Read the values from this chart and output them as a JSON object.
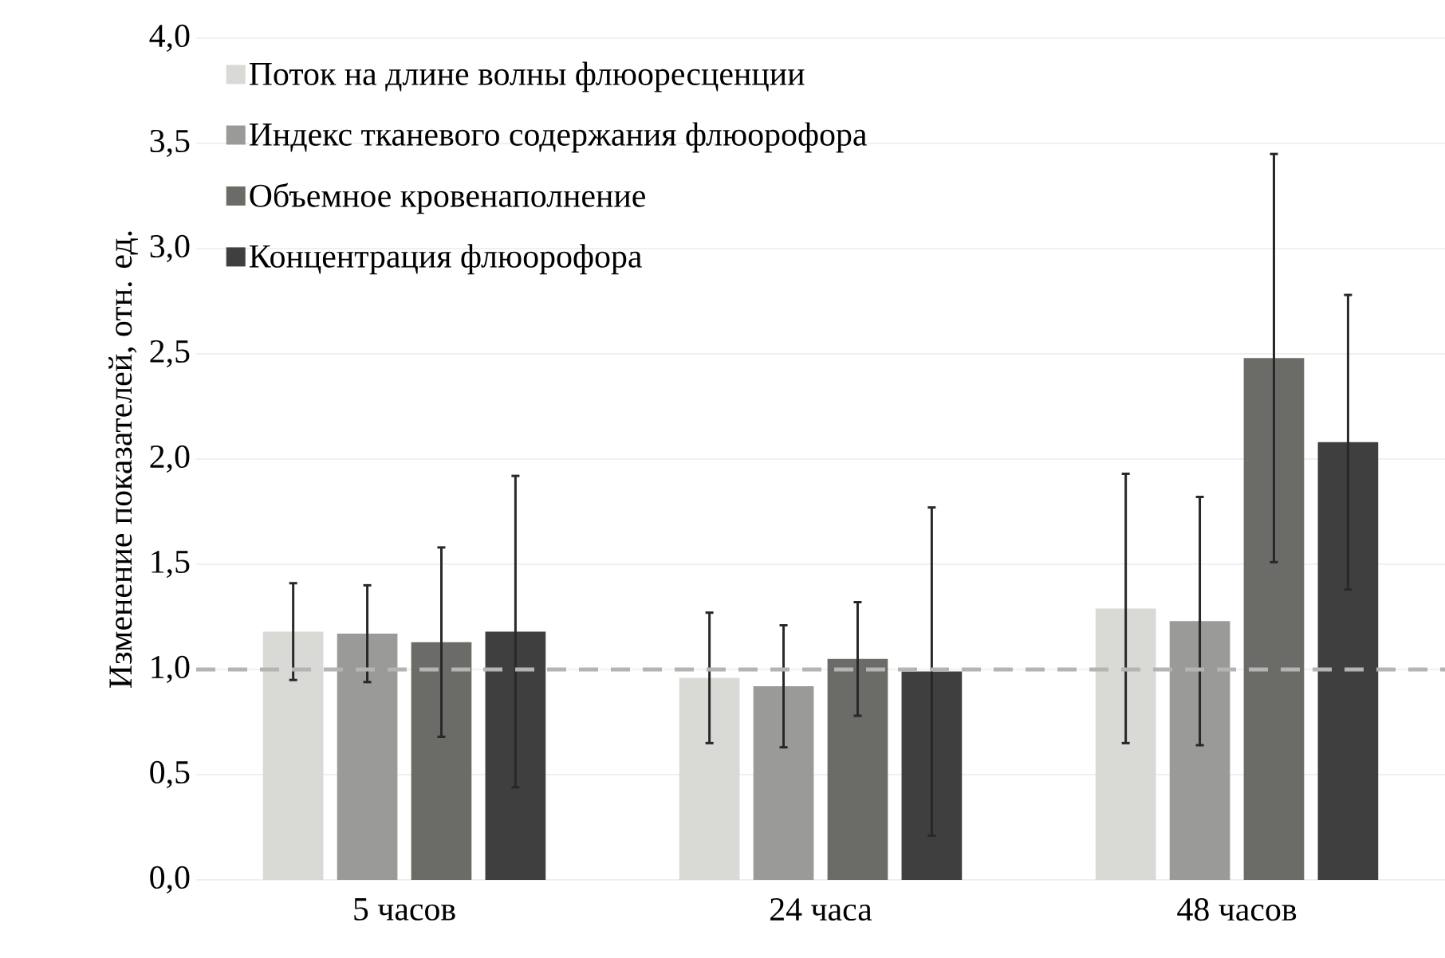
{
  "chart_data": {
    "type": "bar",
    "ylabel": "Изменение показателей, отн. ед.",
    "categories": [
      "5 часов",
      "24 часа",
      "48 часов"
    ],
    "series": [
      {
        "name": "Поток на длине волны флюоресценции",
        "color": "#d9d9d6",
        "values": [
          1.18,
          0.96,
          1.29
        ],
        "errors": [
          0.23,
          0.31,
          0.64
        ]
      },
      {
        "name": "Индекс тканевого содержания флюорофора",
        "color": "#9a9a98",
        "values": [
          1.17,
          0.92,
          1.23
        ],
        "errors": [
          0.23,
          0.29,
          0.59
        ]
      },
      {
        "name": "Объемное кровенаполнение",
        "color": "#6b6b67",
        "values": [
          1.13,
          1.05,
          2.48
        ],
        "errors": [
          0.45,
          0.27,
          0.97
        ]
      },
      {
        "name": "Концентрация флюорофора",
        "color": "#3f3f3f",
        "values": [
          1.18,
          0.99,
          2.08
        ],
        "errors": [
          0.74,
          0.78,
          0.7
        ]
      }
    ],
    "ylim": [
      0,
      4
    ],
    "yticks": [
      {
        "value": 0,
        "label": "0,0"
      },
      {
        "value": 0.5,
        "label": "0,5"
      },
      {
        "value": 1,
        "label": "1,0"
      },
      {
        "value": 1.5,
        "label": "1,5"
      },
      {
        "value": 2,
        "label": "2,0"
      },
      {
        "value": 2.5,
        "label": "2,5"
      },
      {
        "value": 3,
        "label": "3,0"
      },
      {
        "value": 3.5,
        "label": "3,5"
      },
      {
        "value": 4,
        "label": "4,0"
      }
    ],
    "grid": "y",
    "legend": "top left",
    "ref_lines": [
      {
        "axis": "y",
        "value": 1,
        "color": "#b4b4b4",
        "line_style": "dashed"
      }
    ]
  }
}
